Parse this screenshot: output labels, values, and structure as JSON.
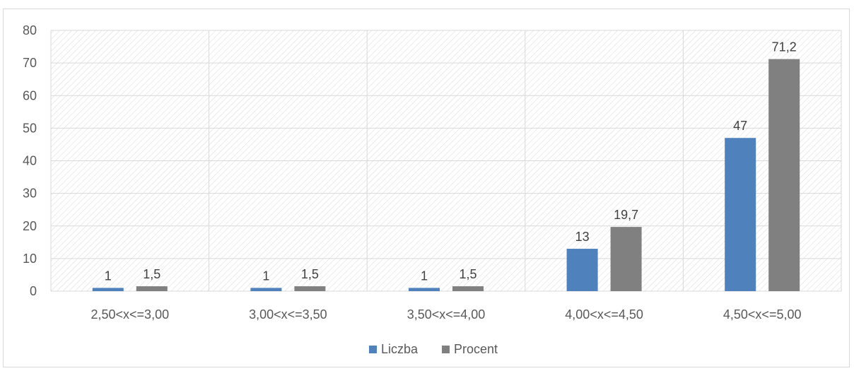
{
  "chart_data": {
    "type": "bar",
    "categories": [
      "2,50<x<=3,00",
      "3,00<x<=3,50",
      "3,50<x<=4,00",
      "4,00<x<=4,50",
      "4,50<x<=5,00"
    ],
    "series": [
      {
        "name": "Liczba",
        "values": [
          1,
          1,
          1,
          13,
          47
        ],
        "labels": [
          "1",
          "1",
          "1",
          "13",
          "47"
        ],
        "color": "#4f81bd"
      },
      {
        "name": "Procent",
        "values": [
          1.5,
          1.5,
          1.5,
          19.7,
          71.2
        ],
        "labels": [
          "1,5",
          "1,5",
          "1,5",
          "19,7",
          "71,2"
        ],
        "color": "#808080"
      }
    ],
    "yticks": [
      "0",
      "10",
      "20",
      "30",
      "40",
      "50",
      "60",
      "70",
      "80"
    ],
    "ylim": [
      0,
      80
    ],
    "grid": true,
    "plot_background": "diagonal-hatch",
    "legend_position": "bottom",
    "title": "",
    "xlabel": "",
    "ylabel": ""
  }
}
